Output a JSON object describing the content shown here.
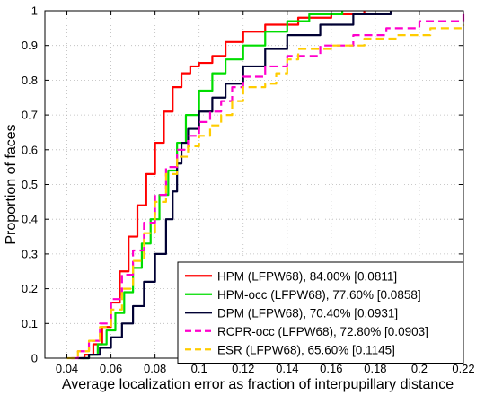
{
  "chart_data": {
    "type": "line",
    "xlabel": "Average localization error as fraction of interpupillary distance",
    "ylabel": "Proportion of faces",
    "xlim": [
      0.03,
      0.22
    ],
    "ylim": [
      0,
      1
    ],
    "x_ticks": [
      "0.04",
      "0.06",
      "0.08",
      "0.1",
      "0.12",
      "0.14",
      "0.16",
      "0.18",
      "0.2",
      "0.22"
    ],
    "y_ticks": [
      "0",
      "0.1",
      "0.2",
      "0.3",
      "0.4",
      "0.5",
      "0.6",
      "0.7",
      "0.8",
      "0.9",
      "1"
    ],
    "grid": true,
    "legend_position": "bottom-right",
    "series": [
      {
        "name": "HPM (LFPW68), 84.00% [0.0811]",
        "color": "#ff0000",
        "dash": "solid",
        "points": [
          [
            0.046,
            0
          ],
          [
            0.048,
            0.01
          ],
          [
            0.052,
            0.04
          ],
          [
            0.056,
            0.09
          ],
          [
            0.06,
            0.16
          ],
          [
            0.064,
            0.25
          ],
          [
            0.068,
            0.35
          ],
          [
            0.072,
            0.44
          ],
          [
            0.076,
            0.53
          ],
          [
            0.08,
            0.62
          ],
          [
            0.084,
            0.71
          ],
          [
            0.088,
            0.78
          ],
          [
            0.092,
            0.82
          ],
          [
            0.096,
            0.84
          ],
          [
            0.1,
            0.85
          ],
          [
            0.106,
            0.87
          ],
          [
            0.112,
            0.91
          ],
          [
            0.12,
            0.94
          ],
          [
            0.13,
            0.96
          ],
          [
            0.145,
            0.98
          ],
          [
            0.16,
            0.99
          ],
          [
            0.175,
            1.0
          ]
        ]
      },
      {
        "name": "HPM-occ (LFPW68), 77.60% [0.0858]",
        "color": "#00dd00",
        "dash": "solid",
        "points": [
          [
            0.047,
            0
          ],
          [
            0.05,
            0.01
          ],
          [
            0.054,
            0.04
          ],
          [
            0.058,
            0.08
          ],
          [
            0.062,
            0.13
          ],
          [
            0.066,
            0.19
          ],
          [
            0.07,
            0.26
          ],
          [
            0.074,
            0.33
          ],
          [
            0.078,
            0.4
          ],
          [
            0.082,
            0.47
          ],
          [
            0.086,
            0.54
          ],
          [
            0.09,
            0.62
          ],
          [
            0.094,
            0.7
          ],
          [
            0.1,
            0.77
          ],
          [
            0.106,
            0.82
          ],
          [
            0.112,
            0.86
          ],
          [
            0.12,
            0.9
          ],
          [
            0.13,
            0.94
          ],
          [
            0.14,
            0.97
          ],
          [
            0.15,
            0.99
          ],
          [
            0.165,
            1.0
          ]
        ]
      },
      {
        "name": "DPM (LFPW68), 70.40% [0.0931]",
        "color": "#000033",
        "dash": "solid",
        "points": [
          [
            0.045,
            0
          ],
          [
            0.05,
            0.01
          ],
          [
            0.055,
            0.03
          ],
          [
            0.06,
            0.06
          ],
          [
            0.065,
            0.1
          ],
          [
            0.07,
            0.15
          ],
          [
            0.075,
            0.22
          ],
          [
            0.08,
            0.3
          ],
          [
            0.085,
            0.4
          ],
          [
            0.088,
            0.48
          ],
          [
            0.09,
            0.56
          ],
          [
            0.092,
            0.62
          ],
          [
            0.095,
            0.66
          ],
          [
            0.1,
            0.71
          ],
          [
            0.106,
            0.75
          ],
          [
            0.112,
            0.79
          ],
          [
            0.12,
            0.84
          ],
          [
            0.13,
            0.89
          ],
          [
            0.14,
            0.93
          ],
          [
            0.155,
            0.96
          ],
          [
            0.17,
            0.99
          ],
          [
            0.187,
            1.0
          ]
        ]
      },
      {
        "name": "RCPR-occ (LFPW68), 72.80% [0.0903]",
        "color": "#ff00cc",
        "dash": "dashed",
        "points": [
          [
            0.042,
            0
          ],
          [
            0.045,
            0.02
          ],
          [
            0.05,
            0.05
          ],
          [
            0.055,
            0.1
          ],
          [
            0.06,
            0.17
          ],
          [
            0.065,
            0.24
          ],
          [
            0.07,
            0.31
          ],
          [
            0.075,
            0.39
          ],
          [
            0.08,
            0.47
          ],
          [
            0.085,
            0.55
          ],
          [
            0.09,
            0.6
          ],
          [
            0.095,
            0.64
          ],
          [
            0.1,
            0.68
          ],
          [
            0.105,
            0.71
          ],
          [
            0.11,
            0.74
          ],
          [
            0.115,
            0.78
          ],
          [
            0.12,
            0.81
          ],
          [
            0.13,
            0.84
          ],
          [
            0.14,
            0.87
          ],
          [
            0.155,
            0.9
          ],
          [
            0.17,
            0.93
          ],
          [
            0.185,
            0.95
          ],
          [
            0.2,
            0.97
          ],
          [
            0.22,
            0.99
          ]
        ]
      },
      {
        "name": "ESR (LFPW68), 65.60% [0.1145]",
        "color": "#ffcc00",
        "dash": "dashed",
        "points": [
          [
            0.04,
            0
          ],
          [
            0.045,
            0.02
          ],
          [
            0.05,
            0.05
          ],
          [
            0.055,
            0.09
          ],
          [
            0.06,
            0.14
          ],
          [
            0.065,
            0.2
          ],
          [
            0.07,
            0.28
          ],
          [
            0.075,
            0.36
          ],
          [
            0.08,
            0.45
          ],
          [
            0.085,
            0.53
          ],
          [
            0.09,
            0.58
          ],
          [
            0.095,
            0.61
          ],
          [
            0.1,
            0.64
          ],
          [
            0.105,
            0.67
          ],
          [
            0.11,
            0.7
          ],
          [
            0.115,
            0.74
          ],
          [
            0.12,
            0.78
          ],
          [
            0.13,
            0.79
          ],
          [
            0.135,
            0.82
          ],
          [
            0.14,
            0.86
          ],
          [
            0.145,
            0.89
          ],
          [
            0.16,
            0.9
          ],
          [
            0.175,
            0.92
          ],
          [
            0.19,
            0.93
          ],
          [
            0.205,
            0.95
          ],
          [
            0.22,
            0.96
          ]
        ]
      }
    ]
  }
}
